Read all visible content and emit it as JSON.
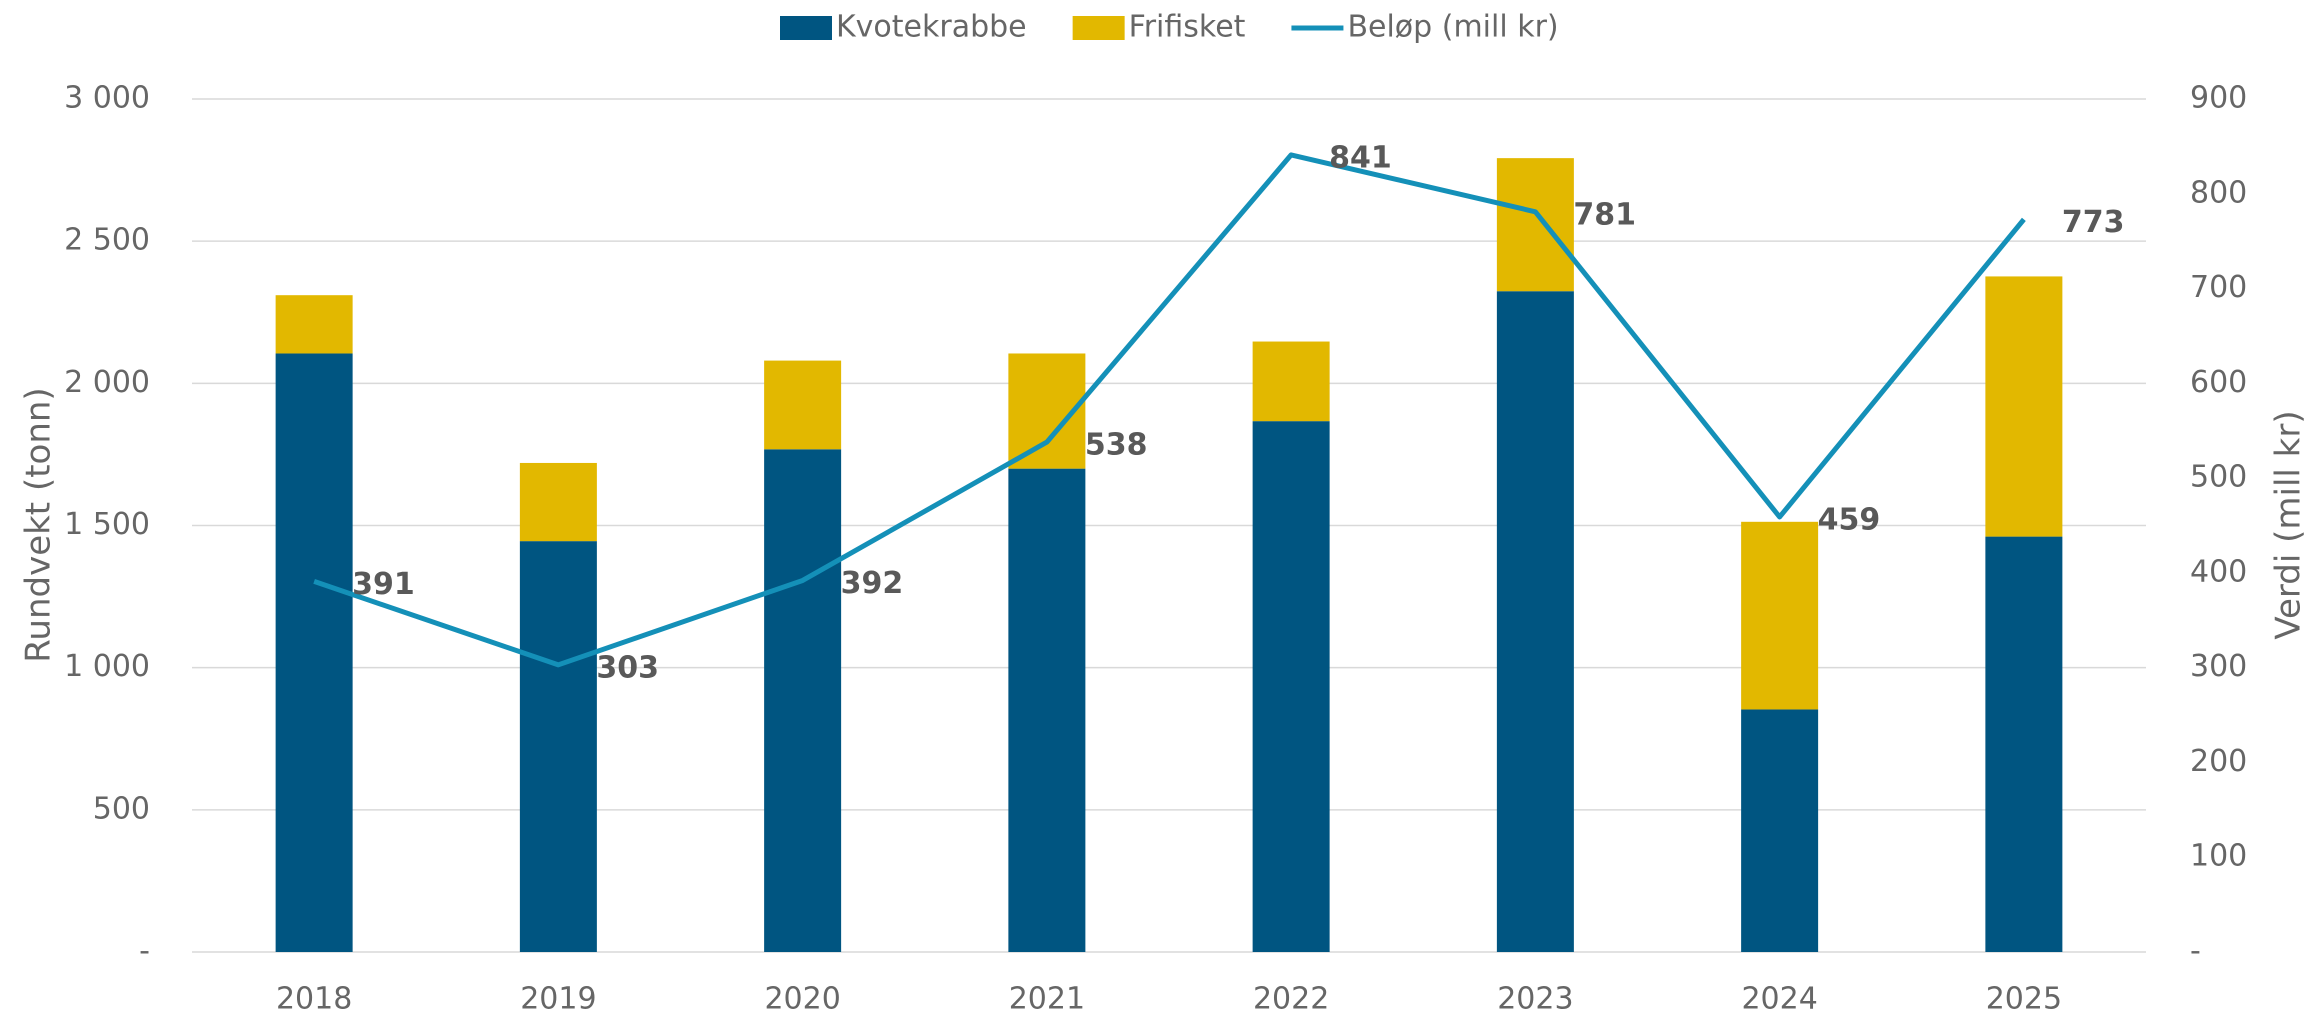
{
  "chart_data": {
    "type": "bar",
    "categories": [
      "2018",
      "2019",
      "2020",
      "2021",
      "2022",
      "2023",
      "2024",
      "2025"
    ],
    "series": [
      {
        "name": "Kvotekrabbe",
        "color": "#005581",
        "type": "bar",
        "stacked": true,
        "values": [
          2105,
          1445,
          1768,
          1700,
          1867,
          2324,
          853,
          1461
        ]
      },
      {
        "name": "Frifisket",
        "color": "#e2b800",
        "type": "bar",
        "stacked": true,
        "values": [
          205,
          275,
          312,
          405,
          280,
          468,
          660,
          915
        ]
      },
      {
        "name": "Beløp (mill kr)",
        "color": "#1490b8",
        "type": "line",
        "axis": "y2",
        "values": [
          391,
          303,
          392,
          538,
          841,
          781,
          459,
          773
        ]
      }
    ],
    "ylabel": "Rundvekt (tonn)",
    "y2label": "Verdi (mill kr)",
    "ylim": [
      0,
      3000
    ],
    "yticks": [
      {
        "value": 0,
        "label": "-"
      },
      500,
      {
        "value": 1000,
        "label": "1 000"
      },
      {
        "value": 1500,
        "label": "1 500"
      },
      {
        "value": 2000,
        "label": "2 000"
      },
      {
        "value": 2500,
        "label": "2 500"
      },
      {
        "value": 3000,
        "label": "3 000"
      }
    ],
    "y2lim": [
      0,
      900
    ],
    "y2ticks": [
      {
        "value": 0,
        "label": "-"
      },
      100,
      200,
      300,
      400,
      500,
      600,
      700,
      800,
      900
    ],
    "grid": true,
    "legend": "top"
  }
}
